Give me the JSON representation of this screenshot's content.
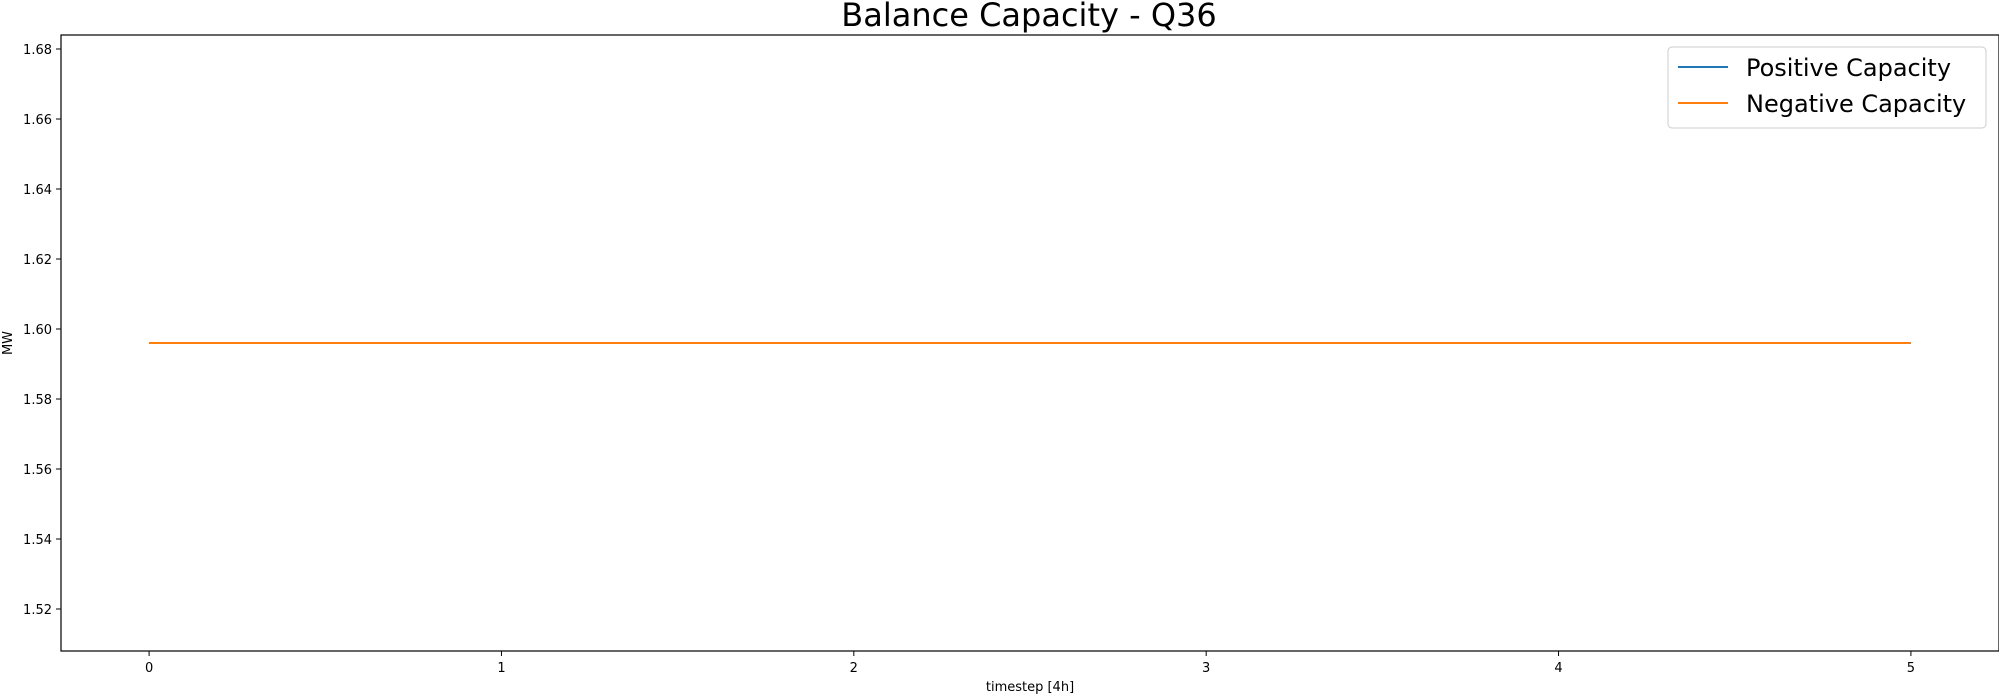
{
  "chart_data": {
    "type": "line",
    "title": "Balance Capacity - Q36",
    "xlabel": "timestep [4h]",
    "ylabel": "MW",
    "x": [
      0,
      1,
      2,
      3,
      4,
      5
    ],
    "xticks": [
      0,
      1,
      2,
      3,
      4,
      5
    ],
    "yticks": [
      1.52,
      1.54,
      1.56,
      1.58,
      1.6,
      1.62,
      1.64,
      1.66,
      1.68
    ],
    "xlim": [
      -0.25,
      5.25
    ],
    "ylim": [
      1.508,
      1.684
    ],
    "grid": false,
    "legend_position": "top-right",
    "series": [
      {
        "name": "Positive Capacity",
        "color": "#1f77b4",
        "values": [
          1.596,
          1.596,
          1.596,
          1.596,
          1.596,
          1.596
        ]
      },
      {
        "name": "Negative Capacity",
        "color": "#ff7f0e",
        "values": [
          1.596,
          1.596,
          1.596,
          1.596,
          1.596,
          1.596
        ]
      }
    ]
  }
}
